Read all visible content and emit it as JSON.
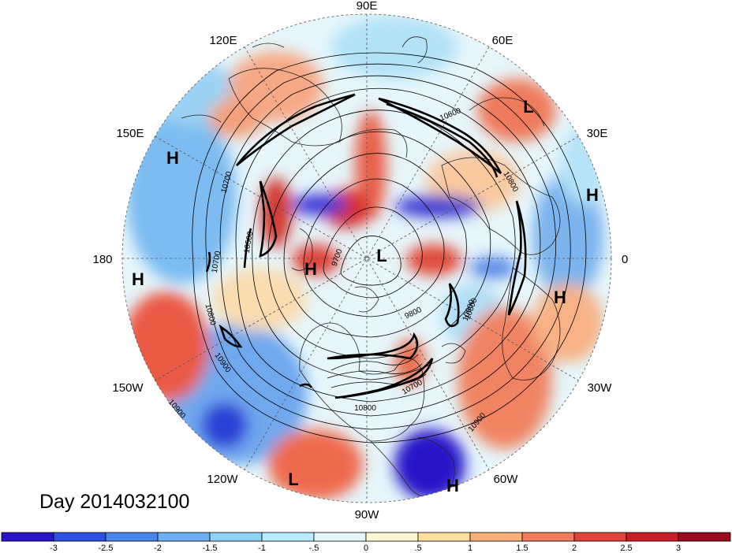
{
  "title": "Day 2014032100",
  "longitude_labels": [
    "90E",
    "60E",
    "30E",
    "0",
    "30W",
    "60W",
    "90W",
    "120W",
    "150W",
    "180",
    "150E",
    "120E"
  ],
  "contour_labels": [
    "10600",
    "10800",
    "10700",
    "10500",
    "9700",
    "9800",
    "10600",
    "10700",
    "10800",
    "10900",
    "10900",
    "10800",
    "10700",
    "10600",
    "10900"
  ],
  "pressure_markers": [
    "L",
    "H",
    "H",
    "H",
    "H",
    "L",
    "H",
    "L",
    "H"
  ],
  "colorbar": {
    "ticks": [
      "-3",
      "-2.5",
      "-2",
      "-1.5",
      "-1",
      "-.5",
      "0",
      ".5",
      "1",
      "1.5",
      "2",
      "2.5",
      "3"
    ],
    "colors": [
      "#2a14c8",
      "#2e4fe0",
      "#4a86ea",
      "#6eadf0",
      "#8fd2f5",
      "#b9ecfa",
      "#e4f8fc",
      "#fdf6d3",
      "#fbe09f",
      "#f7b07a",
      "#f17b5e",
      "#e2433f",
      "#c81d28",
      "#9a0b1e"
    ]
  }
}
